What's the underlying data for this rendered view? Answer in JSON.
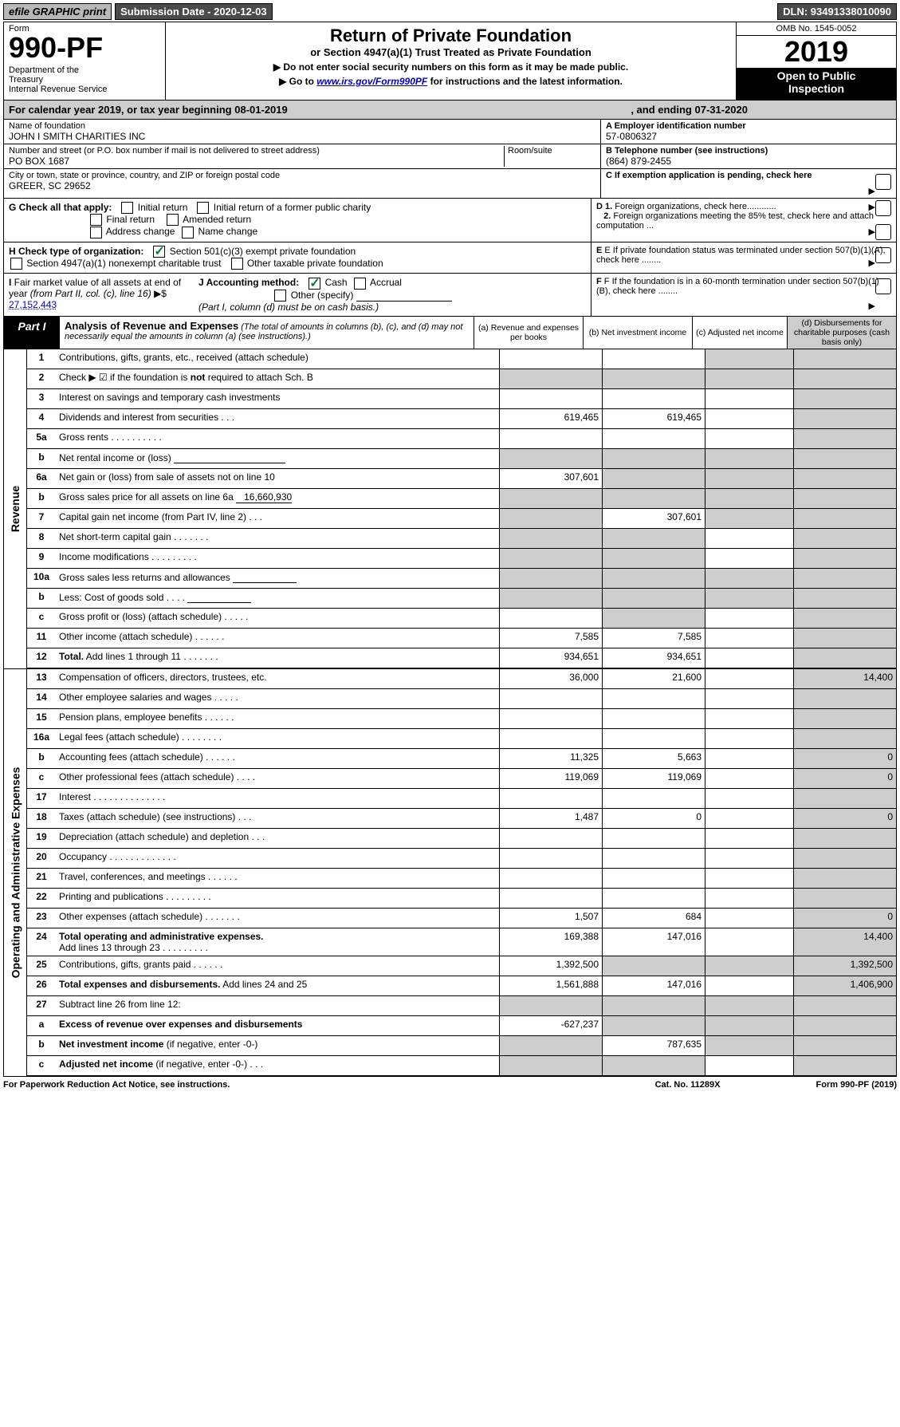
{
  "topbar": {
    "efile": "efile GRAPHIC print",
    "submission": "Submission Date - 2020-12-03",
    "dln": "DLN: 93491338010090"
  },
  "header": {
    "form_label": "Form",
    "form_num": "990-PF",
    "dept": "Department of the Treasury\nInternal Revenue Service",
    "title": "Return of Private Foundation",
    "subtitle": "or Section 4947(a)(1) Trust Treated as Private Foundation",
    "note1": "▶ Do not enter social security numbers on this form as it may be made public.",
    "note2_pre": "▶ Go to ",
    "note2_link": "www.irs.gov/Form990PF",
    "note2_post": " for instructions and the latest information.",
    "omb": "OMB No. 1545-0052",
    "year": "2019",
    "open": "Open to Public Inspection"
  },
  "cal_year": {
    "pre": "For calendar year 2019, or tax year beginning ",
    "begin": "08-01-2019",
    "mid": ", and ending ",
    "end": "07-31-2020"
  },
  "info": {
    "name_label": "Name of foundation",
    "name_val": "JOHN I SMITH CHARITIES INC",
    "addr_label": "Number and street (or P.O. box number if mail is not delivered to street address)",
    "addr_val": "PO BOX 1687",
    "room_label": "Room/suite",
    "city_label": "City or town, state or province, country, and ZIP or foreign postal code",
    "city_val": "GREER, SC  29652",
    "a_label": "A Employer identification number",
    "a_val": "57-0806327",
    "b_label": "B Telephone number (see instructions)",
    "b_val": "(864) 879-2455",
    "c_label": "C If exemption application is pending, check here"
  },
  "checks": {
    "g_label": "G Check all that apply:",
    "g1": "Initial return",
    "g2": "Initial return of a former public charity",
    "g3": "Final return",
    "g4": "Amended return",
    "g5": "Address change",
    "g6": "Name change",
    "h_label": "H Check type of organization:",
    "h1": "Section 501(c)(3) exempt private foundation",
    "h2": "Section 4947(a)(1) nonexempt charitable trust",
    "h3": "Other taxable private foundation",
    "i_label": "I Fair market value of all assets at end of year (from Part II, col. (c), line 16) ▶$",
    "i_val": "27,152,443",
    "j_label": "J Accounting method:",
    "j1": "Cash",
    "j2": "Accrual",
    "j3": "Other (specify)",
    "j_note": "(Part I, column (d) must be on cash basis.)",
    "d1": "D 1. Foreign organizations, check here",
    "d2": "2. Foreign organizations meeting the 85% test, check here and attach computation ...",
    "e": "E If private foundation status was terminated under section 507(b)(1)(A), check here ........",
    "f": "F If the foundation is in a 60-month termination under section 507(b)(1)(B), check here ........"
  },
  "part1": {
    "tab": "Part I",
    "title": "Analysis of Revenue and Expenses",
    "note": "(The total of amounts in columns (b), (c), and (d) may not necessarily equal the amounts in column (a) (see instructions).)",
    "colA": "(a)    Revenue and expenses per books",
    "colB": "(b)   Net investment income",
    "colC": "(c)   Adjusted net income",
    "colD": "(d)   Disbursements for charitable purposes (cash basis only)"
  },
  "side_labels": {
    "revenue": "Revenue",
    "expenses": "Operating and Administrative Expenses"
  },
  "rows": [
    {
      "n": "1",
      "l": "Contributions, gifts, grants, etc., received (attach schedule)",
      "a": "",
      "b": "",
      "cS": true,
      "dS": true
    },
    {
      "n": "2",
      "l": "Check ▶ ☑ if the foundation is <b>not</b> required to attach Sch. B",
      "dots": true,
      "aS": true,
      "bS": true,
      "cS": true,
      "dS": true
    },
    {
      "n": "3",
      "l": "Interest on savings and temporary cash investments",
      "a": "",
      "b": "",
      "c": "",
      "dS": true
    },
    {
      "n": "4",
      "l": "Dividends and interest from securities    .   .   .",
      "a": "619,465",
      "b": "619,465",
      "c": "",
      "dS": true
    },
    {
      "n": "5a",
      "l": "Gross rents       .   .   .   .   .   .   .   .   .   .",
      "a": "",
      "b": "",
      "c": "",
      "dS": true
    },
    {
      "n": "b",
      "l": "Net rental income or (loss)   <span class='underline-box' style='min-width:140px'></span>",
      "aS": true,
      "bS": true,
      "cS": true,
      "dS": true
    },
    {
      "n": "6a",
      "l": "Net gain or (loss) from sale of assets not on line 10",
      "a": "307,601",
      "bS": true,
      "cS": true,
      "dS": true
    },
    {
      "n": "b",
      "l": "Gross sales price for all assets on line 6a <span class='inline-under'>&nbsp;&nbsp;&nbsp;16,660,930</span>",
      "aS": true,
      "bS": true,
      "cS": true,
      "dS": true
    },
    {
      "n": "7",
      "l": "Capital gain net income (from Part IV, line 2)    .   .   .",
      "aS": true,
      "b": "307,601",
      "cS": true,
      "dS": true
    },
    {
      "n": "8",
      "l": "Net short-term capital gain    .   .   .   .   .   .   .",
      "aS": true,
      "bS": true,
      "c": "",
      "dS": true
    },
    {
      "n": "9",
      "l": "Income modifications   .   .   .   .   .   .   .   .   .",
      "aS": true,
      "bS": true,
      "c": "",
      "dS": true
    },
    {
      "n": "10a",
      "l": "Gross sales less returns and allowances  <span class='underline-box'></span>",
      "aS": true,
      "bS": true,
      "cS": true,
      "dS": true
    },
    {
      "n": "b",
      "l": "Less: Cost of goods sold       .   .   .   .   <span class='underline-box'></span>",
      "aS": true,
      "bS": true,
      "cS": true,
      "dS": true
    },
    {
      "n": "c",
      "l": "Gross profit or (loss) (attach schedule)    .   .   .   .   .",
      "a": "",
      "bS": true,
      "c": "",
      "dS": true
    },
    {
      "n": "11",
      "l": "Other income (attach schedule)    .   .   .   .   .   .",
      "a": "7,585",
      "b": "7,585",
      "c": "",
      "dS": true
    },
    {
      "n": "12",
      "l": "<b>Total.</b> Add lines 1 through 11    .   .   .   .   .   .   .",
      "a": "934,651",
      "b": "934,651",
      "c": "",
      "dS": true
    }
  ],
  "exp_rows": [
    {
      "n": "13",
      "l": "Compensation of officers, directors, trustees, etc.",
      "a": "36,000",
      "b": "21,600",
      "c": "",
      "d": "14,400"
    },
    {
      "n": "14",
      "l": "Other employee salaries and wages    .   .   .   .   .",
      "a": "",
      "b": "",
      "c": "",
      "d": ""
    },
    {
      "n": "15",
      "l": "Pension plans, employee benefits    .   .   .   .   .   .",
      "a": "",
      "b": "",
      "c": "",
      "d": ""
    },
    {
      "n": "16a",
      "l": "Legal fees (attach schedule)   .   .   .   .   .   .   .   .",
      "a": "",
      "b": "",
      "c": "",
      "d": ""
    },
    {
      "n": "b",
      "l": "Accounting fees (attach schedule)   .   .   .   .   .   .",
      "a": "11,325",
      "b": "5,663",
      "c": "",
      "d": "0"
    },
    {
      "n": "c",
      "l": "Other professional fees (attach schedule)    .   .   .   .",
      "a": "119,069",
      "b": "119,069",
      "c": "",
      "d": "0"
    },
    {
      "n": "17",
      "l": "Interest   .   .   .   .   .   .   .   .   .   .   .   .   .   .",
      "a": "",
      "b": "",
      "c": "",
      "d": ""
    },
    {
      "n": "18",
      "l": "Taxes (attach schedule) (see instructions)    .   .   .",
      "a": "1,487",
      "b": "0",
      "c": "",
      "d": "0"
    },
    {
      "n": "19",
      "l": "Depreciation (attach schedule) and depletion    .   .   .",
      "a": "",
      "b": "",
      "c": "",
      "dS": true
    },
    {
      "n": "20",
      "l": "Occupancy  .   .   .   .   .   .   .   .   .   .   .   .   .",
      "a": "",
      "b": "",
      "c": "",
      "d": ""
    },
    {
      "n": "21",
      "l": "Travel, conferences, and meetings   .   .   .   .   .   .",
      "a": "",
      "b": "",
      "c": "",
      "d": ""
    },
    {
      "n": "22",
      "l": "Printing and publications   .   .   .   .   .   .   .   .   .",
      "a": "",
      "b": "",
      "c": "",
      "d": ""
    },
    {
      "n": "23",
      "l": "Other expenses (attach schedule)   .   .   .   .   .   .   .",
      "a": "1,507",
      "b": "684",
      "c": "",
      "d": "0"
    },
    {
      "n": "24",
      "l": "<b>Total operating and administrative expenses.</b><br>Add lines 13 through 23   .   .   .   .   .   .   .   .   .",
      "a": "169,388",
      "b": "147,016",
      "c": "",
      "d": "14,400"
    },
    {
      "n": "25",
      "l": "Contributions, gifts, grants paid       .   .   .   .   .   .",
      "a": "1,392,500",
      "bS": true,
      "cS": true,
      "d": "1,392,500"
    },
    {
      "n": "26",
      "l": "<b>Total expenses and disbursements.</b> Add lines 24 and 25",
      "a": "1,561,888",
      "b": "147,016",
      "c": "",
      "d": "1,406,900"
    },
    {
      "n": "27",
      "l": "Subtract line 26 from line 12:",
      "aS": true,
      "bS": true,
      "cS": true,
      "dS": true
    },
    {
      "n": "a",
      "l": "<b>Excess of revenue over expenses and disbursements</b>",
      "a": "-627,237",
      "bS": true,
      "cS": true,
      "dS": true
    },
    {
      "n": "b",
      "l": "<b>Net investment income</b> (if negative, enter -0-)",
      "aS": true,
      "b": "787,635",
      "cS": true,
      "dS": true
    },
    {
      "n": "c",
      "l": "<b>Adjusted net income</b> (if negative, enter -0-)   .   .   .",
      "aS": true,
      "bS": true,
      "c": "",
      "dS": true
    }
  ],
  "footer": {
    "left": "For Paperwork Reduction Act Notice, see instructions.",
    "mid": "Cat. No. 11289X",
    "right": "Form 990-PF (2019)"
  },
  "colors": {
    "shade": "#cdcdcd",
    "link": "#0000cc",
    "check": "#0a7a3a"
  }
}
